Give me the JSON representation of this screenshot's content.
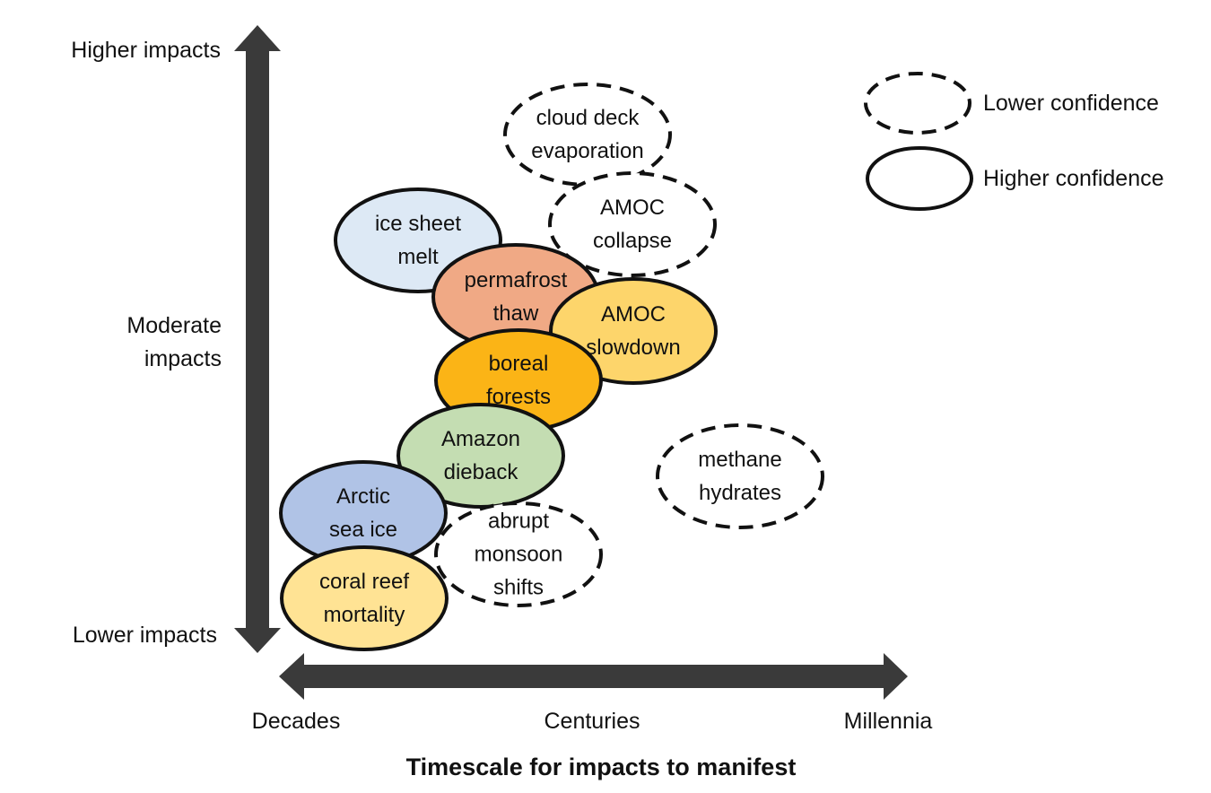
{
  "y_axis": {
    "top_label": "Higher impacts",
    "middle_label_line1": "Moderate",
    "middle_label_line2": "impacts",
    "bottom_label": "Lower impacts"
  },
  "x_axis": {
    "tick_labels": [
      "Decades",
      "Centuries",
      "Millennia"
    ],
    "title": "Timescale for impacts to manifest"
  },
  "legend": {
    "lower": "Lower confidence",
    "higher": "Higher confidence"
  },
  "colors": {
    "arrow": "#3a3a3a",
    "outline": "#111111",
    "ice_sheet": "#dde9f5",
    "permafrost": "#f0a985",
    "amoc_slowdown": "#fdd56b",
    "boreal": "#fbb416",
    "amazon": "#c4ddb2",
    "arctic": "#b0c3e6",
    "coral": "#ffe394"
  },
  "elements": [
    {
      "id": "cloud-deck-evaporation",
      "lines": [
        "cloud deck",
        "evaporation"
      ],
      "confidence": "lower",
      "fill": "#ffffff"
    },
    {
      "id": "amoc-collapse",
      "lines": [
        "AMOC",
        "collapse"
      ],
      "confidence": "lower",
      "fill": "#ffffff"
    },
    {
      "id": "ice-sheet-melt",
      "lines": [
        "ice sheet",
        "melt"
      ],
      "confidence": "higher",
      "fill": "#dde9f5"
    },
    {
      "id": "permafrost-thaw",
      "lines": [
        "permafrost",
        "thaw"
      ],
      "confidence": "higher",
      "fill": "#f0a985"
    },
    {
      "id": "amoc-slowdown",
      "lines": [
        "AMOC",
        "slowdown"
      ],
      "confidence": "higher",
      "fill": "#fdd56b"
    },
    {
      "id": "boreal-forests",
      "lines": [
        "boreal",
        "forests"
      ],
      "confidence": "higher",
      "fill": "#fbb416"
    },
    {
      "id": "amazon-dieback",
      "lines": [
        "Amazon",
        "dieback"
      ],
      "confidence": "higher",
      "fill": "#c4ddb2"
    },
    {
      "id": "methane-hydrates",
      "lines": [
        "methane",
        "hydrates"
      ],
      "confidence": "lower",
      "fill": "#ffffff"
    },
    {
      "id": "abrupt-monsoon-shifts",
      "lines": [
        "abrupt",
        "monsoon",
        "shifts"
      ],
      "confidence": "lower",
      "fill": "#ffffff"
    },
    {
      "id": "arctic-sea-ice",
      "lines": [
        "Arctic",
        "sea ice"
      ],
      "confidence": "higher",
      "fill": "#b0c3e6"
    },
    {
      "id": "coral-reef-mortality",
      "lines": [
        "coral reef",
        "mortality"
      ],
      "confidence": "higher",
      "fill": "#ffe394"
    }
  ]
}
